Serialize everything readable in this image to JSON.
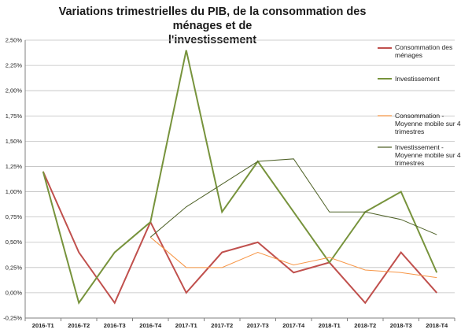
{
  "chart_data": {
    "type": "line",
    "title": "Variations trimestrielles du PIB, de la consommation des ménages et de l'investissement",
    "title_lines": [
      "Variations trimestrielles du PIB, de la consommation des ménages et de",
      "l'investissement"
    ],
    "categories": [
      "2016-T1",
      "2016-T2",
      "2016-T3",
      "2016-T4",
      "2017-T1",
      "2017-T2",
      "2017-T3",
      "2017-T4",
      "2018-T1",
      "2018-T2",
      "2018-T3",
      "2018-T4"
    ],
    "ylim": [
      -0.25,
      2.5
    ],
    "yticks": [
      -0.25,
      0,
      0.25,
      0.5,
      0.75,
      1.0,
      1.25,
      1.5,
      1.75,
      2.0,
      2.25,
      2.5
    ],
    "ytick_labels": [
      "-0,25%",
      "0,00%",
      "0,25%",
      "0,50%",
      "0,75%",
      "1,00%",
      "1,25%",
      "1,50%",
      "1,75%",
      "2,00%",
      "2,25%",
      "2,50%"
    ],
    "grid": true,
    "legend_position": "right",
    "series": [
      {
        "name": "Consommation des ménages",
        "legend_lines": [
          "Consommation des",
          "ménages"
        ],
        "color": "#c0504d",
        "width": 2,
        "values": [
          1.2,
          0.4,
          -0.1,
          0.7,
          0.0,
          0.4,
          0.5,
          0.2,
          0.3,
          -0.1,
          0.4,
          0.0
        ]
      },
      {
        "name": "Investissement",
        "legend_lines": [
          "Investissement"
        ],
        "color": "#77933c",
        "width": 2,
        "values": [
          1.2,
          -0.1,
          0.4,
          0.7,
          2.4,
          0.8,
          1.3,
          0.8,
          0.3,
          0.8,
          1.0,
          0.2
        ]
      },
      {
        "name": "Consommation - Moyenne mobile sur 4 trimestres",
        "legend_lines": [
          "Consommation -",
          "Moyenne mobile sur 4",
          "trimestres"
        ],
        "color": "#f79646",
        "width": 1,
        "values": [
          null,
          null,
          null,
          0.55,
          0.25,
          0.25,
          0.4,
          0.275,
          0.35,
          0.225,
          0.2,
          0.15
        ]
      },
      {
        "name": "Investissement - Moyenne mobile sur 4 trimestres",
        "legend_lines": [
          "Investissement -",
          "Moyenne mobile sur 4",
          "trimestres"
        ],
        "color": "#4f6228",
        "width": 1,
        "values": [
          null,
          null,
          null,
          0.55,
          0.85,
          1.075,
          1.3,
          1.325,
          0.8,
          0.8,
          0.725,
          0.575
        ]
      }
    ]
  }
}
